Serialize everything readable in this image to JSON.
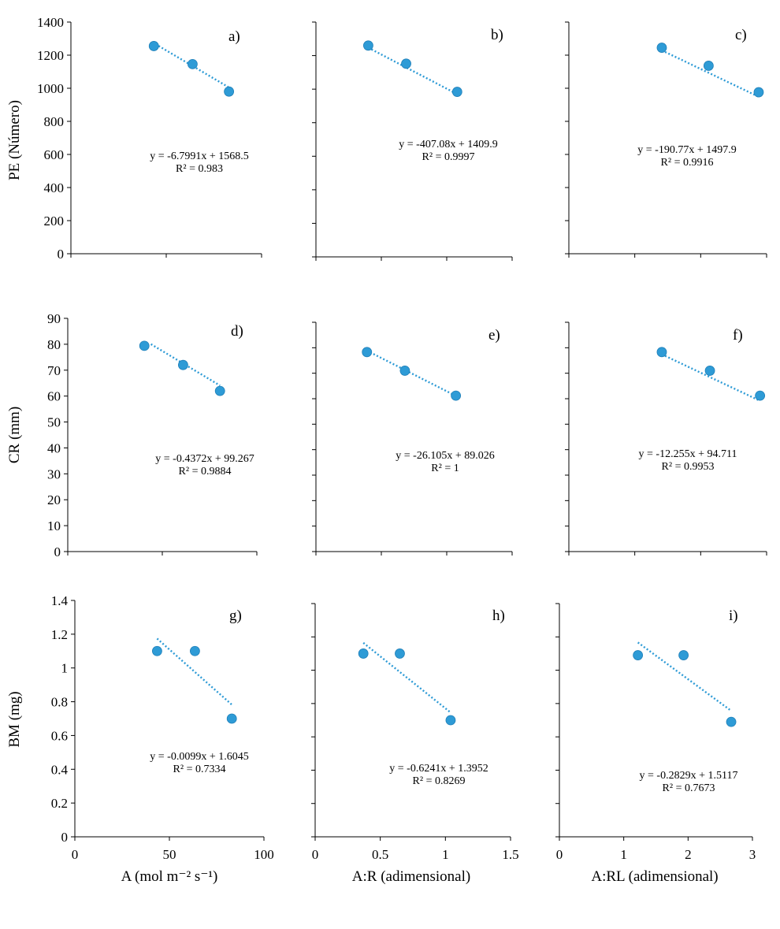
{
  "figure": {
    "marker_color": "#2e9bd6",
    "trend_color": "#2e9bd6",
    "ylabels": [
      "PE (Número)",
      "CR (mm)",
      "BM (mg)"
    ],
    "xlabels": [
      "A (mol m⁻² s⁻¹)",
      "A:R (adimensional)",
      "A:RL (adimensional)"
    ]
  },
  "chart_data": [
    {
      "id": "a",
      "type": "scatter",
      "panel_label": "a)",
      "ylabel": "PE (Número)",
      "xlabel": "A (mol m⁻² s⁻¹)",
      "x": [
        43.5,
        63.8,
        82.9
      ],
      "y": [
        1255,
        1146,
        980
      ],
      "xlim": [
        0,
        100
      ],
      "ylim": [
        0,
        1400
      ],
      "yticks": [
        0,
        200,
        400,
        600,
        800,
        1000,
        1200,
        1400
      ],
      "xticks": [
        0,
        50,
        100
      ],
      "show_yticklabels": true,
      "show_xticklabels": false,
      "trend_x": [
        46,
        82.5
      ],
      "equation": "y = -6.7991x + 1568.5",
      "r2": "R² = 0.983"
    },
    {
      "id": "b",
      "type": "scatter",
      "panel_label": "b)",
      "ylabel": "",
      "xlabel": "A:R (adimensional)",
      "x": [
        0.4,
        0.69,
        1.08
      ],
      "y": [
        1260,
        1152,
        984
      ],
      "xlim": [
        0,
        1.5
      ],
      "ylim": [
        0,
        1400
      ],
      "yticks": [
        0,
        200,
        400,
        600,
        800,
        1000,
        1200,
        1400
      ],
      "xticks": [
        0,
        0.5,
        1,
        1.5
      ],
      "show_yticklabels": false,
      "show_xticklabels": false,
      "trend_x": [
        0.4,
        1.08
      ],
      "equation": "y = -407.08x + 1409.9",
      "r2": "R² = 0.9997"
    },
    {
      "id": "c",
      "type": "scatter",
      "panel_label": "c)",
      "ylabel": "",
      "xlabel": "A:RL (adimensional)",
      "x": [
        1.41,
        2.12,
        2.88
      ],
      "y": [
        1245,
        1136,
        976
      ],
      "xlim": [
        0,
        3
      ],
      "ylim": [
        0,
        1400
      ],
      "yticks": [
        0,
        200,
        400,
        600,
        800,
        1000,
        1200,
        1400
      ],
      "xticks": [
        0,
        1,
        2,
        3
      ],
      "show_yticklabels": false,
      "show_xticklabels": false,
      "trend_x": [
        1.41,
        2.88
      ],
      "equation": "y = -190.77x + 1497.9",
      "r2": "R² = 0.9916"
    },
    {
      "id": "d",
      "type": "scatter",
      "panel_label": "d)",
      "ylabel": "CR (mm)",
      "xlabel": "A (mol m⁻² s⁻¹)",
      "x": [
        40.5,
        61.0,
        80.5
      ],
      "y": [
        79.4,
        72.0,
        62.0
      ],
      "xlim": [
        0,
        100
      ],
      "ylim": [
        0,
        90
      ],
      "yticks": [
        0,
        10,
        20,
        30,
        40,
        50,
        60,
        70,
        80,
        90
      ],
      "xticks": [
        0,
        50,
        100
      ],
      "show_yticklabels": true,
      "show_xticklabels": false,
      "trend_x": [
        44,
        80.5
      ],
      "equation": "y = -0.4372x + 99.267",
      "r2": "R² = 0.9884"
    },
    {
      "id": "e",
      "type": "scatter",
      "panel_label": "e)",
      "ylabel": "",
      "xlabel": "A:R (adimensional)",
      "x": [
        0.39,
        0.68,
        1.07
      ],
      "y": [
        78.3,
        71.0,
        61.2
      ],
      "xlim": [
        0,
        1.5
      ],
      "ylim": [
        0,
        90
      ],
      "yticks": [
        0,
        10,
        20,
        30,
        40,
        50,
        60,
        70,
        80,
        90
      ],
      "xticks": [
        0,
        0.5,
        1,
        1.5
      ],
      "show_yticklabels": false,
      "show_xticklabels": false,
      "trend_x": [
        0.39,
        1.07
      ],
      "equation": "y = -26.105x + 89.026",
      "r2": "R² = 1"
    },
    {
      "id": "f",
      "type": "scatter",
      "panel_label": "f)",
      "ylabel": "",
      "xlabel": "A:RL (adimensional)",
      "x": [
        1.41,
        2.14,
        2.9
      ],
      "y": [
        78.3,
        71.0,
        61.2
      ],
      "xlim": [
        0,
        3
      ],
      "ylim": [
        0,
        90
      ],
      "yticks": [
        0,
        10,
        20,
        30,
        40,
        50,
        60,
        70,
        80,
        90
      ],
      "xticks": [
        0,
        1,
        2,
        3
      ],
      "show_yticklabels": false,
      "show_xticklabels": false,
      "trend_x": [
        1.41,
        2.9
      ],
      "equation": "y = -12.255x + 94.711",
      "r2": "R² = 0.9953"
    },
    {
      "id": "g",
      "type": "scatter",
      "panel_label": "g)",
      "ylabel": "BM (mg)",
      "xlabel": "A (mol m⁻² s⁻¹)",
      "x": [
        43.5,
        63.5,
        83.0
      ],
      "y": [
        1.1,
        1.1,
        0.7
      ],
      "xlim": [
        0,
        100
      ],
      "ylim": [
        0,
        1.4
      ],
      "yticks": [
        0,
        0.2,
        0.4,
        0.6,
        0.8,
        1,
        1.2,
        1.4
      ],
      "xticks": [
        0,
        50,
        100
      ],
      "ytick_labels": [
        "0",
        "0.2",
        "0.4",
        "0.6",
        "0.8",
        "1",
        "1.2",
        "1.4"
      ],
      "xtick_labels": [
        "0",
        "50",
        "100"
      ],
      "show_yticklabels": true,
      "show_xticklabels": true,
      "trend_x": [
        43.5,
        83.0
      ],
      "equation": "y = -0.0099x + 1.6045",
      "r2": "R² = 0.7334"
    },
    {
      "id": "h",
      "type": "scatter",
      "panel_label": "h)",
      "ylabel": "",
      "xlabel": "A:R (adimensional)",
      "x": [
        0.37,
        0.65,
        1.04
      ],
      "y": [
        1.1,
        1.1,
        0.7
      ],
      "xlim": [
        0,
        1.5
      ],
      "ylim": [
        0,
        1.4
      ],
      "yticks": [
        0,
        0.2,
        0.4,
        0.6,
        0.8,
        1,
        1.2,
        1.4
      ],
      "xticks": [
        0,
        0.5,
        1,
        1.5
      ],
      "xtick_labels": [
        "0",
        "0.5",
        "1",
        "1.5"
      ],
      "show_yticklabels": false,
      "show_xticklabels": true,
      "trend_x": [
        0.37,
        1.04
      ],
      "equation": "y = -0.6241x + 1.3952",
      "r2": "R² = 0.8269"
    },
    {
      "id": "i",
      "type": "scatter",
      "panel_label": "i)",
      "ylabel": "",
      "xlabel": "A:RL (adimensional)",
      "x": [
        1.22,
        1.93,
        2.67
      ],
      "y": [
        1.09,
        1.09,
        0.69
      ],
      "xlim": [
        0,
        3
      ],
      "ylim": [
        0,
        1.4
      ],
      "yticks": [
        0,
        0.2,
        0.4,
        0.6,
        0.8,
        1,
        1.2,
        1.4
      ],
      "xticks": [
        0,
        1,
        2,
        3
      ],
      "xtick_labels": [
        "0",
        "1",
        "2",
        "3"
      ],
      "show_yticklabels": false,
      "show_xticklabels": true,
      "trend_x": [
        1.22,
        2.67
      ],
      "equation": "y = -0.2829x + 1.5117",
      "r2": "R² = 0.7673"
    }
  ]
}
